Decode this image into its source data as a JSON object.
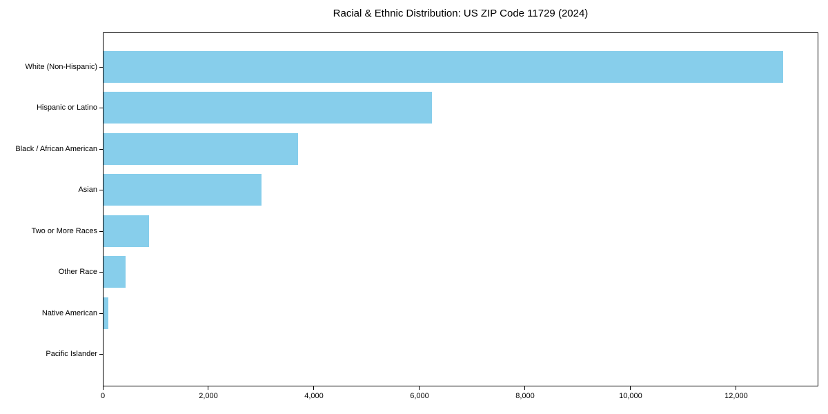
{
  "title": "Racial & Ethnic Distribution: US ZIP Code 11729 (2024)",
  "colors": {
    "bar": "#87CEEB",
    "text": "#000000",
    "spine": "#000000",
    "background": "#ffffff"
  },
  "chart_data": {
    "type": "bar",
    "orientation": "horizontal",
    "title": "Racial & Ethnic Distribution: US ZIP Code 11729 (2024)",
    "xlabel": "",
    "ylabel": "",
    "categories": [
      "White (Non-Hispanic)",
      "Hispanic or Latino",
      "Black / African American",
      "Asian",
      "Two or More Races",
      "Other Race",
      "Native American",
      "Pacific Islander"
    ],
    "values": [
      12900,
      6230,
      3700,
      3000,
      860,
      420,
      90,
      0
    ],
    "xlim": [
      0,
      13556
    ],
    "xticks": [
      0,
      2000,
      4000,
      6000,
      8000,
      10000,
      12000
    ],
    "xtick_labels": [
      "0",
      "2,000",
      "4,000",
      "6,000",
      "8,000",
      "10,000",
      "12,000"
    ],
    "bar_color": "#87CEEB",
    "grid": false,
    "legend": null
  }
}
